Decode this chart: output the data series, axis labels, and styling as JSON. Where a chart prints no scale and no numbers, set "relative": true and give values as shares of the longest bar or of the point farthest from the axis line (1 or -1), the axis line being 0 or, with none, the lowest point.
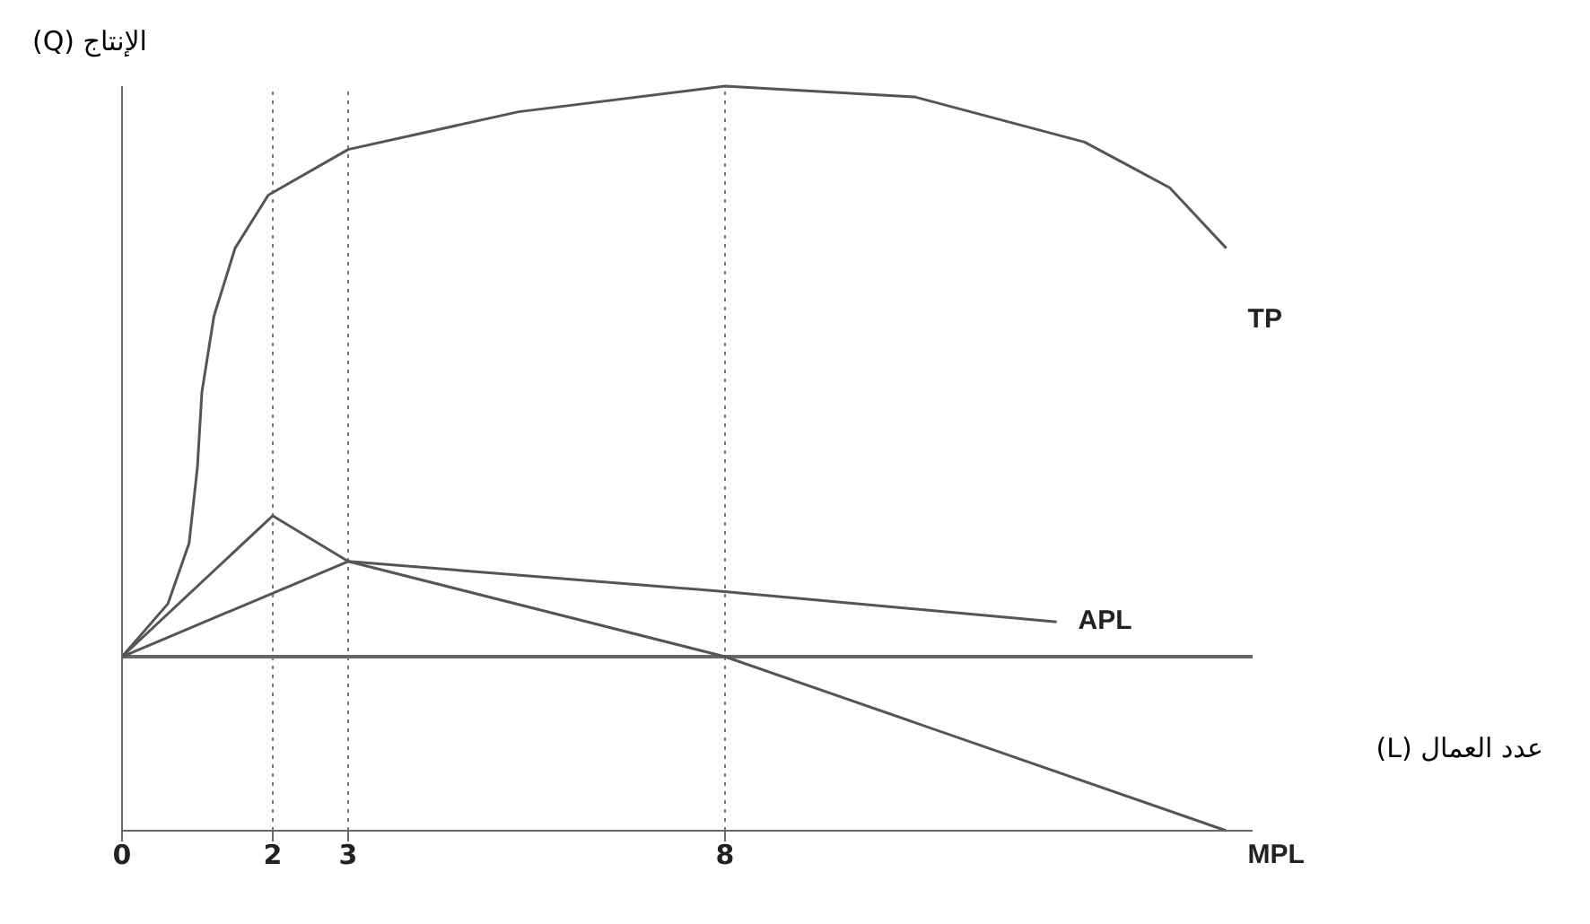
{
  "chart_data": {
    "type": "line",
    "relative": true,
    "xlabel": "عدد العمال (L)",
    "ylabel": "الإنتاج (Q)",
    "xlim": [
      0,
      15
    ],
    "xticks": [
      0,
      2,
      3,
      8
    ],
    "tick_labels": "x",
    "grid": false,
    "legend": false,
    "marker": "none",
    "line_style": "solid",
    "series": [
      {
        "name": "TP",
        "color": "#555555",
        "x": [
          0,
          0.61,
          0.89,
          1.0,
          1.06,
          1.22,
          1.5,
          1.94,
          3,
          5.26,
          8,
          10.52,
          12.77,
          13.9,
          14.65
        ],
        "values": [
          0,
          0.093,
          0.199,
          0.332,
          0.464,
          0.597,
          0.716,
          0.809,
          0.889,
          0.955,
          1,
          0.981,
          0.902,
          0.822,
          0.716
        ]
      },
      {
        "name": "APL",
        "color": "#555555",
        "x": [
          0,
          3,
          8,
          12.4
        ],
        "values": [
          0,
          0.167,
          0.114,
          0.061
        ]
      },
      {
        "name": "MPL",
        "color": "#555555",
        "x": [
          0,
          2,
          3,
          8,
          14.65
        ],
        "values": [
          0,
          0.247,
          0.167,
          0,
          -0.305
        ]
      }
    ],
    "ref_lines": [
      {
        "axis": "x",
        "value": 2,
        "line_style": "dotted",
        "color": "#777777"
      },
      {
        "axis": "x",
        "value": 3,
        "line_style": "dotted",
        "color": "#777777"
      },
      {
        "axis": "x",
        "value": 8,
        "line_style": "dotted",
        "color": "#777777"
      }
    ]
  }
}
